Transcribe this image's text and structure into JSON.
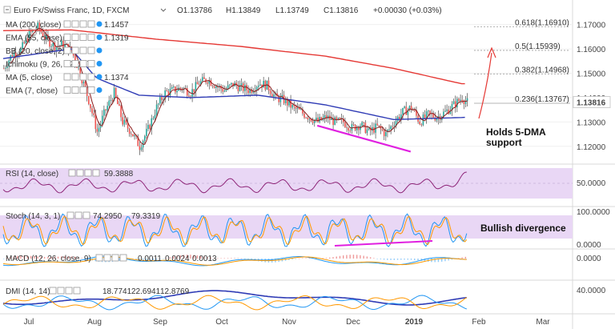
{
  "header": {
    "symbol_title": "Euro Fx/Swiss Franc, 1D, FXCM",
    "open": "O1.13786",
    "high": "H1.13849",
    "low": "L1.13749",
    "close": "C1.13816",
    "change": "+0.00030 (+0.03%)"
  },
  "indicators": [
    {
      "label": "MA (200, close)",
      "value": "1.1457",
      "color": "#e53935"
    },
    {
      "label": "EMA (55, close)",
      "value": "1.1319",
      "color": "#2f3bb5"
    },
    {
      "label": "BB (20, close, 2)",
      "value": "",
      "color": "#2196f3"
    },
    {
      "label": "Ichimoku (9, 26, 52, 26)",
      "value": "",
      "color": "#2196f3"
    },
    {
      "label": "MA (5, close)",
      "value": "1.1374",
      "color": "#111111"
    },
    {
      "label": "EMA (7, close)",
      "value": "",
      "color": "#2196f3"
    }
  ],
  "price_axis": {
    "ticks": [
      "1.17000",
      "1.16000",
      "1.15000",
      "1.14000",
      "1.13000",
      "1.12000"
    ],
    "current": "1.13816"
  },
  "fib_levels": [
    {
      "label": "0.618(1.16910)",
      "value": 1.1691
    },
    {
      "label": "0.5(1.15939)",
      "value": 1.15939
    },
    {
      "label": "0.382(1.14968)",
      "value": 1.14968
    },
    {
      "label": "0.236(1.13767)",
      "value": 1.13767
    }
  ],
  "annotations": {
    "ma_support_line1": "Holds 5-DMA",
    "ma_support_line2": "support",
    "bullish_divergence": "Bullish divergence"
  },
  "rsi": {
    "label": "RSI (14, close)",
    "value": "59.3888",
    "tick": "50.0000",
    "color": "#8e2478"
  },
  "stoch": {
    "label": "Stoch (14, 3, 1)",
    "k": "74.2950",
    "d": "79.3319",
    "ticks": [
      "100.0000",
      "0.0000"
    ]
  },
  "macd": {
    "label": "MACD (12, 26, close, 9)",
    "hist": "0.0011",
    "macd": "0.0024",
    "signal": "0.0013",
    "tick": "0.0000"
  },
  "dmi": {
    "label": "DMI (14, 14)",
    "adx": "18.7741",
    "plus_di": "22.6941",
    "minus_di": "12.8769",
    "tick": "40.0000"
  },
  "time_axis": [
    "Jul",
    "Aug",
    "Sep",
    "Oct",
    "Nov",
    "Dec",
    "2019",
    "Feb",
    "Mar"
  ],
  "colors": {
    "bull": "#26a69a",
    "bear": "#ef5350",
    "ma200": "#e53935",
    "ema55": "#2f3bb5",
    "ma5": "#8b1a1a",
    "magenta": "#e020e0",
    "rsi": "#8e2478",
    "stochK": "#2196f3",
    "stochD": "#ff9800",
    "band": "#e9d7f5"
  },
  "chart_data": {
    "type": "candlestick",
    "title": "Euro Fx/Swiss Franc, 1D, FXCM",
    "ylim": [
      1.115,
      1.1735
    ],
    "y_ticks": [
      1.12,
      1.13,
      1.14,
      1.15,
      1.16,
      1.17
    ],
    "x_ticks": [
      "Jul",
      "Aug",
      "Sep",
      "Oct",
      "Nov",
      "Dec",
      "2019",
      "Feb",
      "Mar"
    ],
    "close_path": [
      [
        0,
        1.152
      ],
      [
        5,
        1.158
      ],
      [
        10,
        1.1595
      ],
      [
        15,
        1.166
      ],
      [
        20,
        1.169
      ],
      [
        25,
        1.164
      ],
      [
        30,
        1.161
      ],
      [
        35,
        1.162
      ],
      [
        40,
        1.159
      ],
      [
        45,
        1.15
      ],
      [
        50,
        1.139
      ],
      [
        55,
        1.126
      ],
      [
        60,
        1.135
      ],
      [
        65,
        1.142
      ],
      [
        70,
        1.13
      ],
      [
        75,
        1.126
      ],
      [
        80,
        1.12
      ],
      [
        85,
        1.127
      ],
      [
        90,
        1.136
      ],
      [
        95,
        1.142
      ],
      [
        100,
        1.143
      ],
      [
        105,
        1.144
      ],
      [
        110,
        1.142
      ],
      [
        115,
        1.146
      ],
      [
        120,
        1.1475
      ],
      [
        125,
        1.145
      ],
      [
        130,
        1.143
      ],
      [
        135,
        1.1455
      ],
      [
        140,
        1.144
      ],
      [
        145,
        1.143
      ],
      [
        150,
        1.146
      ],
      [
        155,
        1.145
      ],
      [
        160,
        1.14
      ],
      [
        165,
        1.139
      ],
      [
        170,
        1.136
      ],
      [
        175,
        1.134
      ],
      [
        180,
        1.132
      ],
      [
        185,
        1.13
      ],
      [
        190,
        1.132
      ],
      [
        195,
        1.13
      ],
      [
        200,
        1.13
      ],
      [
        205,
        1.1275
      ],
      [
        210,
        1.129
      ],
      [
        215,
        1.126
      ],
      [
        220,
        1.128
      ],
      [
        225,
        1.125
      ],
      [
        230,
        1.13
      ],
      [
        235,
        1.134
      ],
      [
        240,
        1.136
      ],
      [
        245,
        1.13
      ],
      [
        250,
        1.133
      ],
      [
        255,
        1.132
      ],
      [
        260,
        1.134
      ],
      [
        265,
        1.137
      ],
      [
        270,
        1.14
      ],
      [
        273,
        1.138
      ]
    ],
    "ma200_path": [
      [
        0,
        1.1675
      ],
      [
        40,
        1.1678
      ],
      [
        90,
        1.164
      ],
      [
        140,
        1.161
      ],
      [
        190,
        1.157
      ],
      [
        230,
        1.152
      ],
      [
        270,
        1.1457
      ]
    ],
    "ema55_path": [
      [
        0,
        1.156
      ],
      [
        40,
        1.16
      ],
      [
        55,
        1.148
      ],
      [
        80,
        1.141
      ],
      [
        110,
        1.14
      ],
      [
        150,
        1.141
      ],
      [
        190,
        1.137
      ],
      [
        230,
        1.131
      ],
      [
        273,
        1.1319
      ]
    ],
    "divergence_line_price": [
      [
        1.1285,
        185
      ],
      [
        1.1178,
        240
      ]
    ]
  }
}
